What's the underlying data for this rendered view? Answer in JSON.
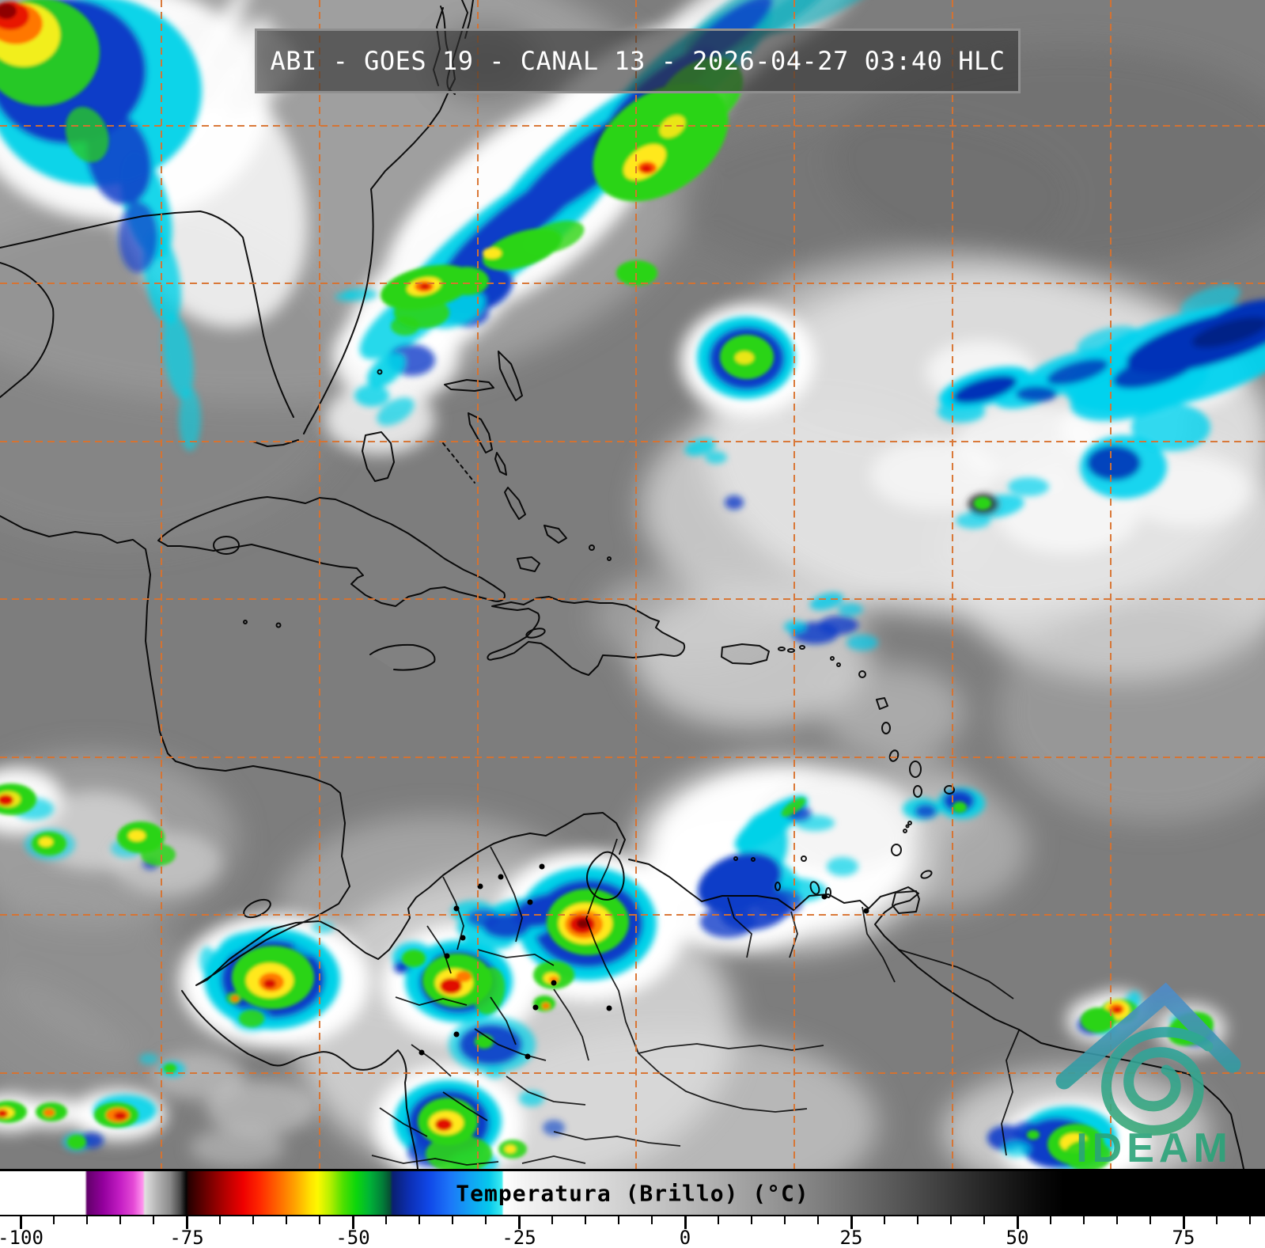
{
  "header": {
    "title": "ABI - GOES 19 - CANAL 13 - 2026-04-27 03:40 HLC"
  },
  "logo": {
    "text": "IDEAM"
  },
  "colorbar": {
    "label": "Temperatura (Brillo) (°C)",
    "major_ticks": [
      {
        "t": -100,
        "label": "-100"
      },
      {
        "t": -75,
        "label": "-75"
      },
      {
        "t": -50,
        "label": "-50"
      },
      {
        "t": -25,
        "label": "-25"
      },
      {
        "t": 0,
        "label": "0"
      },
      {
        "t": 25,
        "label": "25"
      },
      {
        "t": 50,
        "label": "50"
      },
      {
        "t": 75,
        "label": "75"
      }
    ],
    "minor_ticks": [
      -95,
      -90,
      -85,
      -80,
      -70,
      -65,
      -60,
      -55,
      -45,
      -40,
      -35,
      -30,
      -20,
      -15,
      -10,
      -5,
      5,
      10,
      15,
      20,
      30,
      35,
      40,
      45,
      55,
      60,
      65,
      70,
      80,
      85
    ],
    "stops": [
      {
        "t": -103,
        "c": "#ffffff"
      },
      {
        "t": -90.3,
        "c": "#ffffff"
      },
      {
        "t": -90,
        "c": "#62006a"
      },
      {
        "t": -87.5,
        "c": "#94009e"
      },
      {
        "t": -85,
        "c": "#c41ec4"
      },
      {
        "t": -83,
        "c": "#e54ad6"
      },
      {
        "t": -81.6,
        "c": "#ff96ee"
      },
      {
        "t": -81.3,
        "c": "#e0e0e0"
      },
      {
        "t": -79.5,
        "c": "#b4b4b4"
      },
      {
        "t": -77.5,
        "c": "#8a8a8a"
      },
      {
        "t": -76,
        "c": "#4a4a4a"
      },
      {
        "t": -75.1,
        "c": "#050505"
      },
      {
        "t": -74.7,
        "c": "#270000"
      },
      {
        "t": -72,
        "c": "#6e0000"
      },
      {
        "t": -69,
        "c": "#b80000"
      },
      {
        "t": -66.5,
        "c": "#ef0000"
      },
      {
        "t": -64,
        "c": "#ff2800"
      },
      {
        "t": -61,
        "c": "#ff6c00"
      },
      {
        "t": -58.5,
        "c": "#ffa800"
      },
      {
        "t": -56.5,
        "c": "#ffe000"
      },
      {
        "t": -55.3,
        "c": "#fdf800"
      },
      {
        "t": -53.5,
        "c": "#b8f000"
      },
      {
        "t": -51.5,
        "c": "#50e000"
      },
      {
        "t": -49.5,
        "c": "#0cd60c"
      },
      {
        "t": -47.5,
        "c": "#00b437"
      },
      {
        "t": -45.5,
        "c": "#027c38"
      },
      {
        "t": -44.4,
        "c": "#074f33"
      },
      {
        "t": -44,
        "c": "#0a1f70"
      },
      {
        "t": -41.5,
        "c": "#0c2fb4"
      },
      {
        "t": -38.5,
        "c": "#1048e8"
      },
      {
        "t": -35.5,
        "c": "#1c74f8"
      },
      {
        "t": -32.5,
        "c": "#12a0f4"
      },
      {
        "t": -29.5,
        "c": "#06c8ec"
      },
      {
        "t": -27.6,
        "c": "#3cecf0"
      },
      {
        "t": -27.3,
        "c": "#ffffff"
      },
      {
        "t": -24,
        "c": "#f2f2f2"
      },
      {
        "t": -15,
        "c": "#dedede"
      },
      {
        "t": -5,
        "c": "#c6c6c6"
      },
      {
        "t": 5,
        "c": "#adadad"
      },
      {
        "t": 15,
        "c": "#909090"
      },
      {
        "t": 25,
        "c": "#6f6f6f"
      },
      {
        "t": 35,
        "c": "#4c4c4c"
      },
      {
        "t": 45,
        "c": "#262626"
      },
      {
        "t": 53,
        "c": "#0a0a0a"
      },
      {
        "t": 57,
        "c": "#000000"
      },
      {
        "t": 87,
        "c": "#000000"
      }
    ]
  },
  "palette": {
    "graticule": "#d9722f",
    "coastline": "#000000",
    "ocean_gray": "#7d7d7d",
    "title_text": "#ffffff",
    "title_border": "#8f8f8f",
    "logo_blue": "#4f8cc9",
    "logo_teal": "#2fa3a2",
    "logo_green": "#2ba379",
    "enh_cyan": "#00d2e8",
    "enh_blue": "#0a3cc8",
    "enh_green": "#2bd414",
    "enh_yellow": "#ffe81a",
    "enh_orange": "#ff7a00",
    "enh_red": "#e01000"
  }
}
